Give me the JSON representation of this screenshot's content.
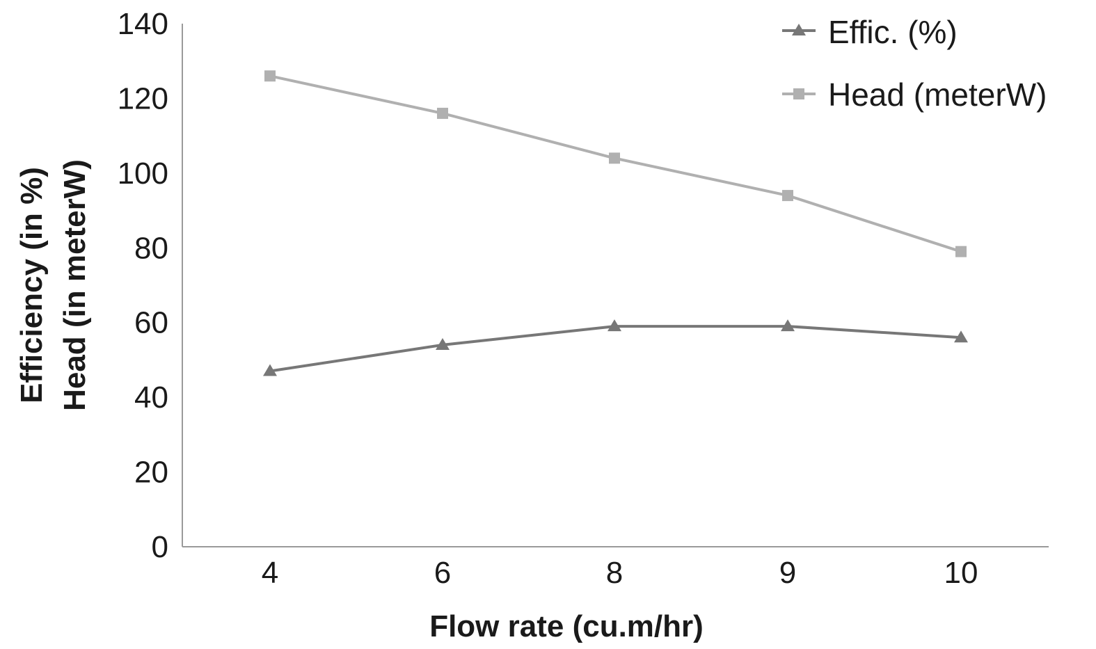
{
  "chart_data": {
    "type": "line",
    "categories": [
      "4",
      "6",
      "8",
      "9",
      "10"
    ],
    "series": [
      {
        "name": "Effic. (%)",
        "values": [
          47,
          54,
          59,
          59,
          56
        ],
        "color": "#777777",
        "marker": "triangle"
      },
      {
        "name": "Head (meterW)",
        "values": [
          126,
          116,
          104,
          94,
          79
        ],
        "color": "#b0b0b0",
        "marker": "square"
      }
    ],
    "xlabel": "Flow rate (cu.m/hr)",
    "ylabel": [
      "Efficiency (in %)",
      "Head (in meterW)"
    ],
    "ylim": [
      0,
      140
    ],
    "yticks": [
      "0",
      "20",
      "40",
      "60",
      "80",
      "100",
      "120",
      "140"
    ],
    "grid": false,
    "legend_position": "top-right"
  }
}
